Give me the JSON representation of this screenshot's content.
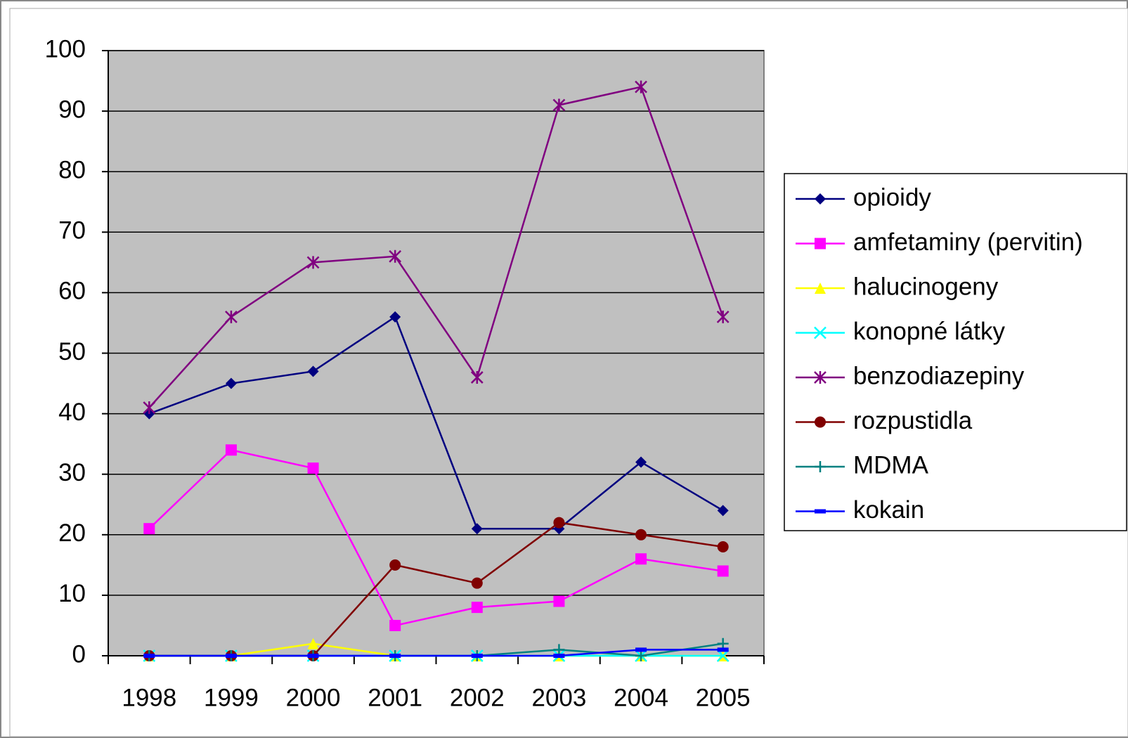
{
  "chart_data": {
    "type": "line",
    "categories": [
      "1998",
      "1999",
      "2000",
      "2001",
      "2002",
      "2003",
      "2004",
      "2005"
    ],
    "series": [
      {
        "name": "opioidy",
        "color": "#000080",
        "marker": "diamond",
        "values": [
          40,
          45,
          47,
          56,
          21,
          21,
          32,
          24
        ]
      },
      {
        "name": "amfetaminy (pervitin)",
        "color": "#ff00ff",
        "marker": "square",
        "values": [
          21,
          34,
          31,
          5,
          8,
          9,
          16,
          14
        ]
      },
      {
        "name": "halucinogeny",
        "color": "#ffff00",
        "marker": "triangle",
        "values": [
          0,
          0,
          2,
          0,
          0,
          0,
          0,
          0
        ]
      },
      {
        "name": "konopné látky",
        "color": "#00ffff",
        "marker": "x",
        "values": [
          0,
          0,
          0,
          0,
          0,
          0,
          0,
          0
        ]
      },
      {
        "name": "benzodiazepiny",
        "color": "#800080",
        "marker": "asterisk",
        "values": [
          41,
          56,
          65,
          66,
          46,
          91,
          94,
          56
        ]
      },
      {
        "name": "rozpustidla",
        "color": "#800000",
        "marker": "circle",
        "values": [
          0,
          0,
          0,
          15,
          12,
          22,
          20,
          18
        ]
      },
      {
        "name": "MDMA",
        "color": "#008080",
        "marker": "plus",
        "values": [
          0,
          0,
          0,
          0,
          0,
          1,
          0,
          2
        ]
      },
      {
        "name": "kokain",
        "color": "#0000ff",
        "marker": "dash",
        "values": [
          0,
          0,
          0,
          0,
          0,
          0,
          1,
          1
        ]
      }
    ],
    "ylim": [
      0,
      100
    ],
    "yticks": [
      0,
      10,
      20,
      30,
      40,
      50,
      60,
      70,
      80,
      90,
      100
    ],
    "grid": true,
    "legend": "right"
  }
}
